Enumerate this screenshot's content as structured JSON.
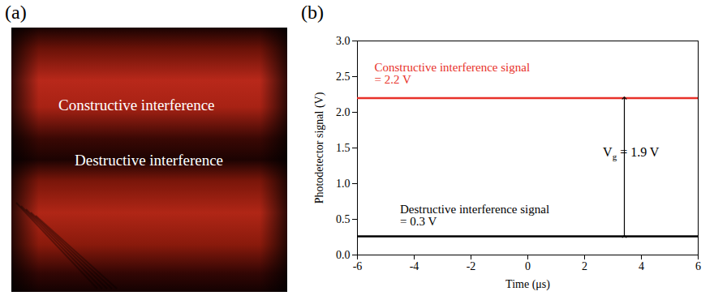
{
  "panel_a": {
    "label": "(a)",
    "texts": [
      "Constructive interference",
      "Destructive interference"
    ]
  },
  "chart_data": {
    "label": "(b)",
    "type": "line",
    "x_label": "Time (μs)",
    "y_label": "Photodetector signal (V)",
    "x": [
      -6,
      -3,
      0,
      3,
      6
    ],
    "series": [
      {
        "color": "#e8312a",
        "values": [
          2.2,
          2.2,
          2.2,
          2.2,
          2.2
        ]
      },
      {
        "color": "#000000",
        "values": [
          0.26,
          0.26,
          0.26,
          0.26,
          0.26
        ]
      }
    ],
    "xlim": [
      -6,
      6
    ],
    "xticks": [
      -6,
      -4,
      -2,
      0,
      2,
      4,
      6
    ],
    "ylim": [
      0,
      3
    ],
    "yticks": [
      {
        "value": 0,
        "label": "0.0"
      },
      {
        "value": 0.5,
        "label": "0.5"
      },
      {
        "value": 1,
        "label": "1.0"
      },
      {
        "value": 1.5,
        "label": "1.5"
      },
      {
        "value": 2,
        "label": "2.0"
      },
      {
        "value": 2.5,
        "label": "2.5"
      },
      {
        "value": 3,
        "label": "3.0"
      }
    ],
    "annotations": [
      {
        "lines": [
          "Constructive interference signal",
          "= 2.2 V"
        ],
        "x": -5.4,
        "y": 2.4,
        "color": "#e8312a"
      },
      {
        "lines": [
          "Destructive interference signal",
          "= 0.3 V"
        ],
        "x": -4.5,
        "y": 0.42,
        "color": "#000000"
      }
    ],
    "arrow": {
      "x": 3.4,
      "y1": 0.26,
      "y2": 2.2,
      "text_parts": [
        "V",
        "g",
        " = 1.9 V"
      ],
      "text_x": 3.65,
      "text_y": 1.38
    }
  }
}
